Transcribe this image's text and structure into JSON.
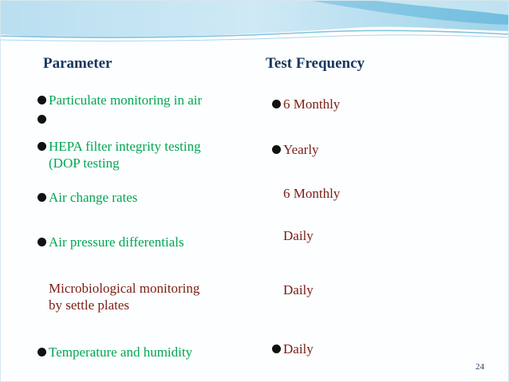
{
  "headers": {
    "parameter": "Parameter",
    "frequency": "Test Frequency"
  },
  "parameters": [
    {
      "lines": [
        "Particulate monitoring in air"
      ],
      "bullet": true
    },
    {
      "lines": [
        ""
      ],
      "bullet": true
    },
    {
      "lines": [
        "HEPA filter integrity testing",
        "(DOP testing"
      ],
      "bullet": true
    },
    {
      "lines": [
        "Air change rates"
      ],
      "bullet": true
    },
    {
      "lines": [
        "Air pressure differentials"
      ],
      "bullet": true
    },
    {
      "lines": [
        "Microbiological monitoring",
        "by settle plates"
      ],
      "bullet": false
    },
    {
      "lines": [
        "Temperature and humidity"
      ],
      "bullet": true
    }
  ],
  "frequencies": [
    {
      "text": "6 Monthly",
      "bullet": true
    },
    {
      "text": "Yearly",
      "bullet": true
    },
    {
      "text": "6 Monthly",
      "bullet": false
    },
    {
      "text": "Daily",
      "bullet": false
    },
    {
      "text": "Daily",
      "bullet": false
    },
    {
      "text": "Daily",
      "bullet": true
    }
  ],
  "page_number": "24",
  "colors": {
    "parameter_text": "#00a651",
    "frequency_text": "#7a1e12",
    "header_text": "#17375e"
  }
}
